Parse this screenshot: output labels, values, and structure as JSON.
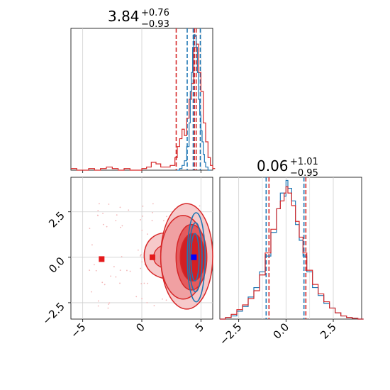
{
  "chart_data": [
    {
      "type": "line",
      "panel": "top-left",
      "title": {
        "median": "3.84",
        "plus": "+0.76",
        "minus": "−0.93"
      },
      "xlim": [
        -6,
        6
      ],
      "ylim": [
        0,
        1
      ],
      "x_ticks": [
        -5,
        0,
        5
      ],
      "series": [
        {
          "color": "#d62728",
          "x": [
            -6.0,
            -5.5,
            -5.0,
            -4.5,
            -4.0,
            -3.5,
            -3.0,
            -2.5,
            -2.0,
            -1.5,
            -1.0,
            -0.5,
            0.0,
            0.4,
            0.8,
            1.2,
            1.6,
            2.0,
            2.4,
            2.8,
            3.0,
            3.2,
            3.4,
            3.6,
            3.8,
            4.0,
            4.2,
            4.4,
            4.6,
            4.8,
            5.0,
            5.2,
            5.4,
            5.6,
            5.8,
            6.0
          ],
          "values": [
            0.01,
            0.0,
            0.0,
            0.01,
            0.0,
            0.01,
            0.02,
            0.01,
            0.0,
            0.01,
            0.0,
            0.0,
            0.01,
            0.02,
            0.05,
            0.04,
            0.02,
            0.02,
            0.03,
            0.08,
            0.15,
            0.2,
            0.26,
            0.22,
            0.33,
            0.45,
            0.55,
            0.78,
            0.8,
            0.62,
            0.5,
            0.3,
            0.18,
            0.08,
            0.03,
            0.01
          ]
        },
        {
          "color": "#1f77b4",
          "x": [
            3.0,
            3.2,
            3.4,
            3.6,
            3.8,
            4.0,
            4.1,
            4.2,
            4.3,
            4.4,
            4.5,
            4.6,
            4.7,
            4.8,
            4.9,
            5.0,
            5.1,
            5.2,
            5.3,
            5.4,
            5.6
          ],
          "values": [
            0.0,
            0.01,
            0.03,
            0.06,
            0.15,
            0.3,
            0.5,
            0.62,
            0.78,
            0.86,
            0.85,
            0.78,
            0.62,
            0.45,
            0.35,
            0.25,
            0.18,
            0.1,
            0.05,
            0.02,
            0.0
          ]
        }
      ],
      "quantile_lines": [
        {
          "color": "#d62728",
          "x": 2.91
        },
        {
          "color": "#d62728",
          "x": 4.45
        },
        {
          "color": "#d62728",
          "x": 4.6
        },
        {
          "color": "#1f77b4",
          "x": 3.84
        },
        {
          "color": "#1f77b4",
          "x": 4.35
        },
        {
          "color": "#1f77b4",
          "x": 4.95
        }
      ]
    },
    {
      "type": "scatter",
      "panel": "bottom-left",
      "xlim": [
        -6,
        6
      ],
      "ylim": [
        -3.4,
        4.4
      ],
      "x_ticks": [
        -5,
        0,
        5
      ],
      "y_ticks": [
        -2.5,
        0.0,
        2.5
      ],
      "x_tick_labels": [
        "−5",
        "0",
        "5"
      ],
      "y_tick_labels": [
        "−2.5",
        "0.0",
        "2.5"
      ],
      "markers": [
        {
          "color": "#e41a1c",
          "x": -3.4,
          "y": -0.1
        },
        {
          "color": "#e41a1c",
          "x": 0.9,
          "y": 0.0
        },
        {
          "color": "#e41a1c",
          "x": 4.5,
          "y": 0.0
        },
        {
          "color": "#0000ff",
          "x": 4.4,
          "y": 0.0
        }
      ],
      "red_contours": [
        {
          "cx": 3.8,
          "cy": 0.05,
          "rx": 2.2,
          "ry": 2.9,
          "fill": "#f6c9ca"
        },
        {
          "cx": 3.5,
          "cy": 0.0,
          "rx": 1.9,
          "ry": 2.3,
          "fill": "#f0a0a2"
        },
        {
          "cx": 4.2,
          "cy": 0.0,
          "rx": 1.3,
          "ry": 1.8,
          "fill": "#e35a5d"
        },
        {
          "cx": 4.3,
          "cy": 0.0,
          "rx": 1.05,
          "ry": 1.3,
          "fill": "#d31f23"
        }
      ],
      "red_tail": {
        "x_from": 0.2,
        "x_to": 2.5,
        "y_min": -1.2,
        "y_max": 1.3
      },
      "blue_contours": [
        {
          "cx": 4.6,
          "cy": 0.0,
          "rx": 0.75,
          "ry": 2.45
        },
        {
          "cx": 4.55,
          "cy": 0.0,
          "rx": 0.55,
          "ry": 1.9
        },
        {
          "cx": 4.5,
          "cy": 0.0,
          "rx": 0.35,
          "ry": 1.3
        }
      ]
    },
    {
      "type": "line",
      "panel": "bottom-right",
      "title": {
        "median": "0.06",
        "plus": "+1.01",
        "minus": "−0.95"
      },
      "xlim": [
        -3.5,
        4.0
      ],
      "ylim": [
        0,
        1
      ],
      "x_ticks": [
        -2.5,
        0.0,
        2.5
      ],
      "x_tick_labels": [
        "−2.5",
        "0.0",
        "2.5"
      ],
      "series": [
        {
          "color": "#1f77b4",
          "x": [
            -3.5,
            -3.2,
            -2.9,
            -2.6,
            -2.3,
            -2.0,
            -1.7,
            -1.4,
            -1.1,
            -0.8,
            -0.5,
            -0.3,
            -0.1,
            0.0,
            0.1,
            0.3,
            0.5,
            0.7,
            0.9,
            1.1,
            1.4,
            1.7,
            2.0,
            2.3,
            2.6,
            2.9,
            3.2,
            3.5,
            3.8
          ],
          "values": [
            0.0,
            0.01,
            0.02,
            0.05,
            0.08,
            0.14,
            0.2,
            0.3,
            0.4,
            0.55,
            0.7,
            0.8,
            0.78,
            0.88,
            0.83,
            0.75,
            0.6,
            0.5,
            0.4,
            0.3,
            0.2,
            0.15,
            0.1,
            0.07,
            0.04,
            0.02,
            0.01,
            0.005,
            0.0
          ]
        },
        {
          "color": "#d62728",
          "x": [
            -3.5,
            -3.2,
            -2.9,
            -2.6,
            -2.3,
            -2.0,
            -1.7,
            -1.4,
            -1.1,
            -0.8,
            -0.5,
            -0.3,
            -0.1,
            0.0,
            0.1,
            0.3,
            0.5,
            0.7,
            0.9,
            1.1,
            1.4,
            1.7,
            2.0,
            2.3,
            2.6,
            2.9,
            3.2,
            3.5,
            3.8
          ],
          "values": [
            0.0,
            0.01,
            0.03,
            0.06,
            0.09,
            0.13,
            0.18,
            0.28,
            0.42,
            0.57,
            0.7,
            0.75,
            0.8,
            0.84,
            0.8,
            0.72,
            0.62,
            0.52,
            0.42,
            0.31,
            0.22,
            0.16,
            0.11,
            0.07,
            0.04,
            0.02,
            0.01,
            0.005,
            0.0
          ]
        }
      ],
      "quantile_lines": [
        {
          "color": "#1f77b4",
          "x": -1.05
        },
        {
          "color": "#d62728",
          "x": -0.9
        },
        {
          "color": "#1f77b4",
          "x": 0.95
        },
        {
          "color": "#d62728",
          "x": 1.05
        }
      ]
    }
  ]
}
